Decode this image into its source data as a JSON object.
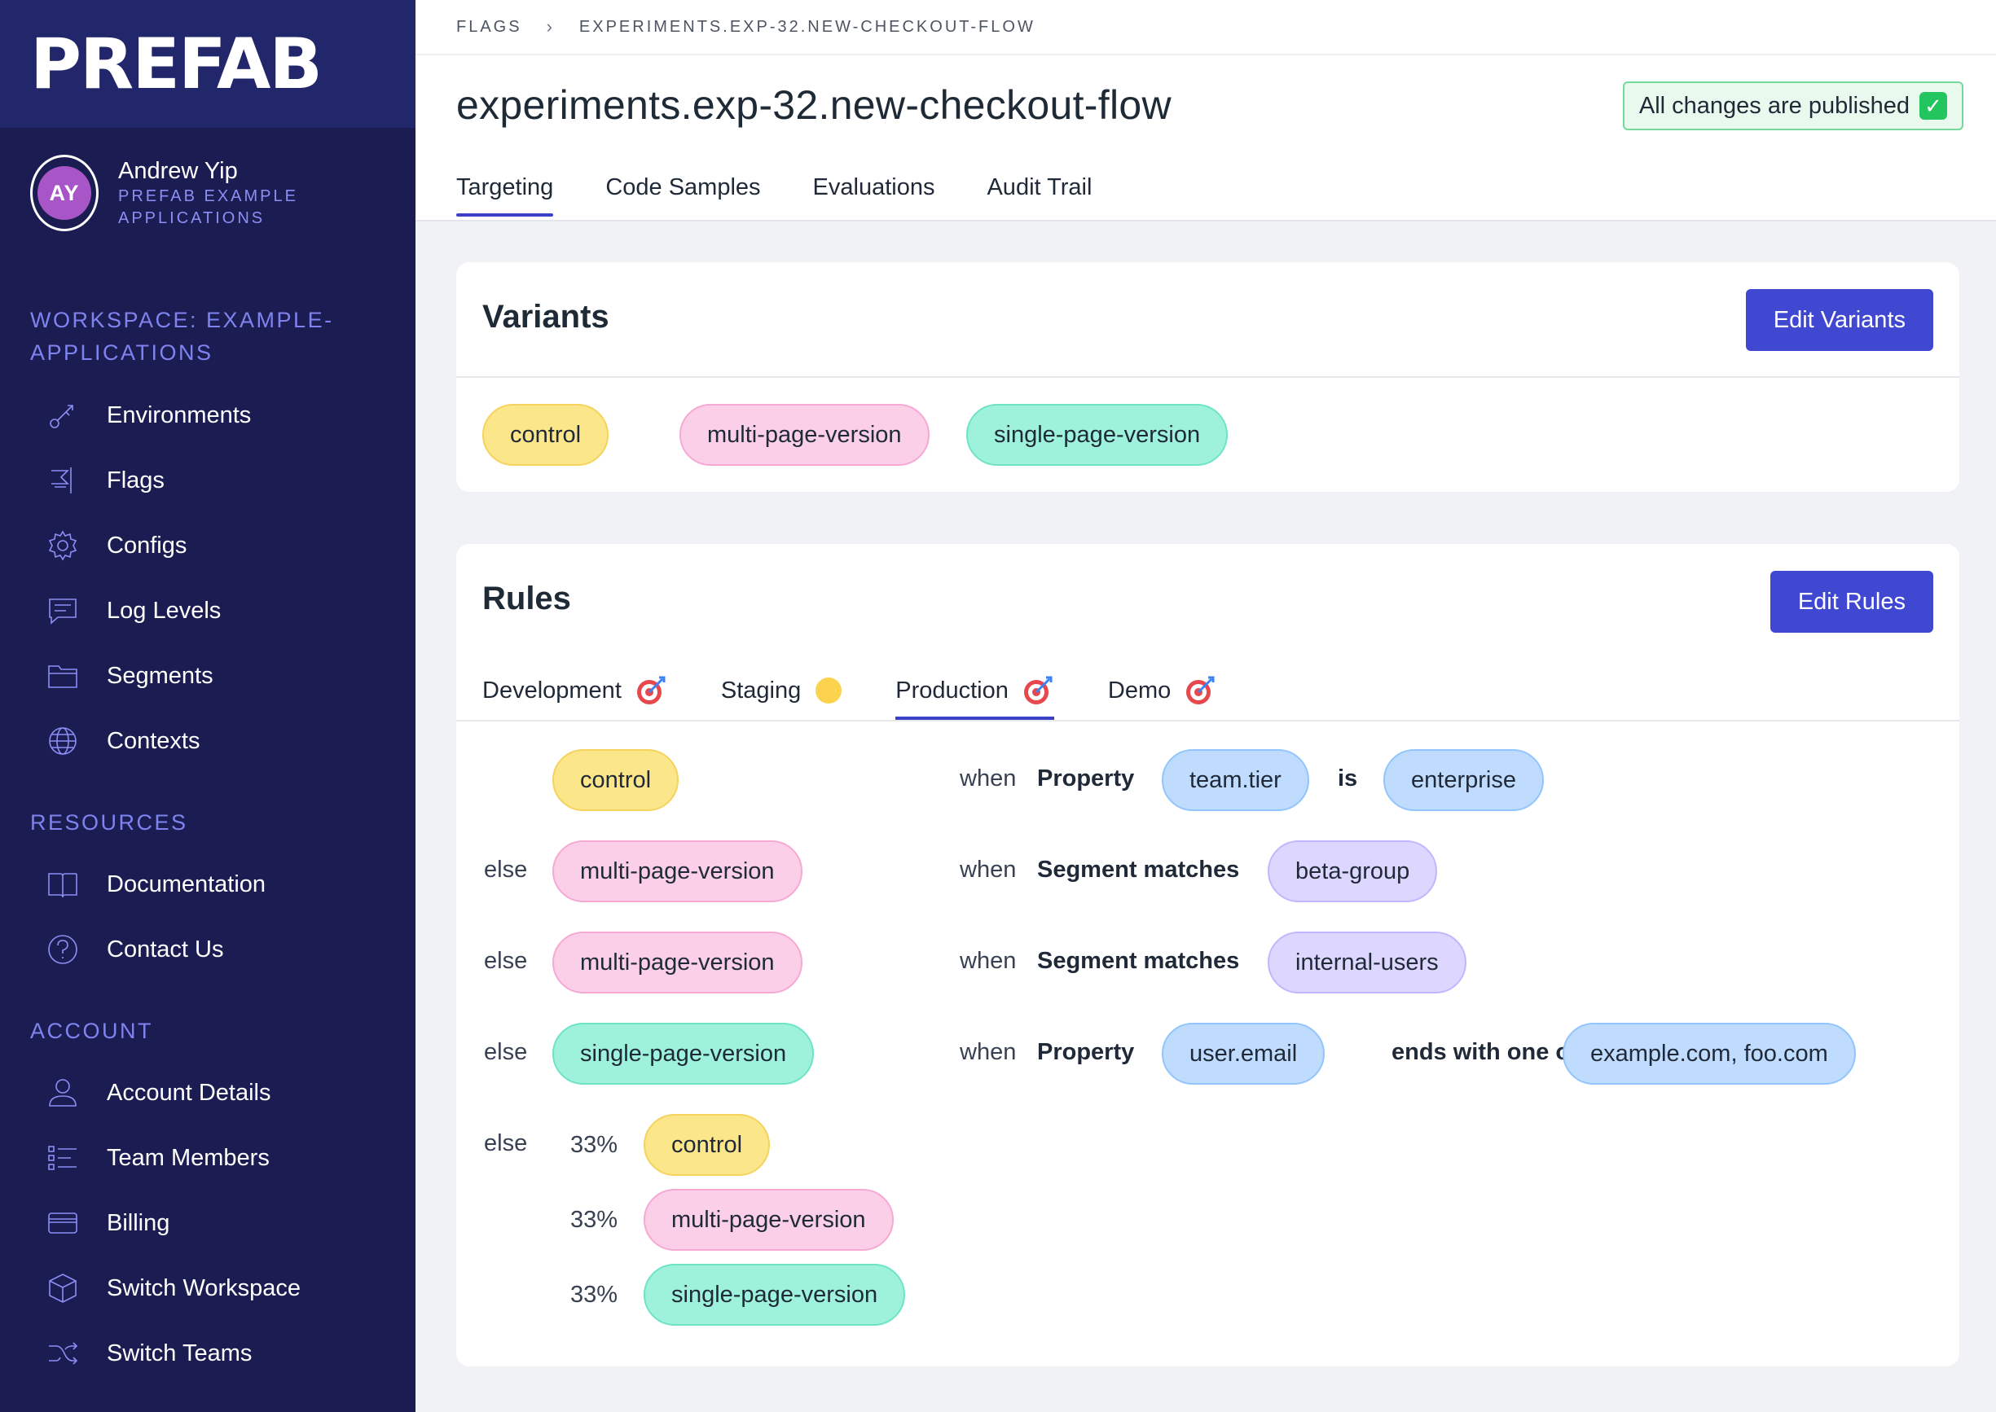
{
  "sidebar": {
    "logo": "PREFAB",
    "user": {
      "initials": "AY",
      "name": "Andrew Yip",
      "org": "PREFAB EXAMPLE APPLICATIONS"
    },
    "workspace_title": "WORKSPACE: EXAMPLE-APPLICATIONS",
    "workspace_items": [
      {
        "label": "Environments",
        "icon": "key-icon"
      },
      {
        "label": "Flags",
        "icon": "flag-icon"
      },
      {
        "label": "Configs",
        "icon": "gear-icon"
      },
      {
        "label": "Log Levels",
        "icon": "chat-icon"
      },
      {
        "label": "Segments",
        "icon": "folder-icon"
      },
      {
        "label": "Contexts",
        "icon": "globe-icon"
      }
    ],
    "resources_title": "RESOURCES",
    "resources_items": [
      {
        "label": "Documentation",
        "icon": "book-icon"
      },
      {
        "label": "Contact Us",
        "icon": "question-icon"
      }
    ],
    "account_title": "ACCOUNT",
    "account_items": [
      {
        "label": "Account Details",
        "icon": "user-icon"
      },
      {
        "label": "Team Members",
        "icon": "list-icon"
      },
      {
        "label": "Billing",
        "icon": "credit-card-icon"
      },
      {
        "label": "Switch Workspace",
        "icon": "cube-icon"
      },
      {
        "label": "Switch Teams",
        "icon": "shuffle-icon"
      }
    ]
  },
  "header": {
    "breadcrumb": [
      "FLAGS",
      "EXPERIMENTS.EXP-32.NEW-CHECKOUT-FLOW"
    ],
    "title": "experiments.exp-32.new-checkout-flow",
    "publish_status": "All changes are published",
    "tabs": [
      "Targeting",
      "Code Samples",
      "Evaluations",
      "Audit Trail"
    ],
    "active_tab": "Targeting"
  },
  "variants": {
    "title": "Variants",
    "edit_label": "Edit Variants",
    "items": [
      "control",
      "multi-page-version",
      "single-page-version"
    ]
  },
  "rules": {
    "title": "Rules",
    "edit_label": "Edit Rules",
    "environments": [
      {
        "label": "Development",
        "marker": "target"
      },
      {
        "label": "Staging",
        "marker": "dot"
      },
      {
        "label": "Production",
        "marker": "target"
      },
      {
        "label": "Demo",
        "marker": "target"
      }
    ],
    "active_environment": "Production",
    "else_label": "else",
    "when_label": "when",
    "rows": [
      {
        "variant": "control",
        "criterion": "Property",
        "field": "team.tier",
        "operator": "is",
        "value": "enterprise"
      },
      {
        "variant": "multi-page-version",
        "criterion": "Segment matches",
        "value": "beta-group"
      },
      {
        "variant": "multi-page-version",
        "criterion": "Segment matches",
        "value": "internal-users"
      },
      {
        "variant": "single-page-version",
        "criterion": "Property",
        "field": "user.email",
        "operator": "ends with one of",
        "value": "example.com, foo.com"
      }
    ],
    "split": [
      {
        "percent": "33%",
        "variant": "control"
      },
      {
        "percent": "33%",
        "variant": "multi-page-version"
      },
      {
        "percent": "33%",
        "variant": "single-page-version"
      }
    ]
  },
  "colors": {
    "sidebar_bg": "#1b1d52",
    "accent": "#4047d1",
    "control": "#fce68a",
    "multi_page": "#fbcfe8",
    "single_page": "#9ef2dc",
    "property": "#bfdbfe",
    "segment": "#ddd6fe"
  }
}
